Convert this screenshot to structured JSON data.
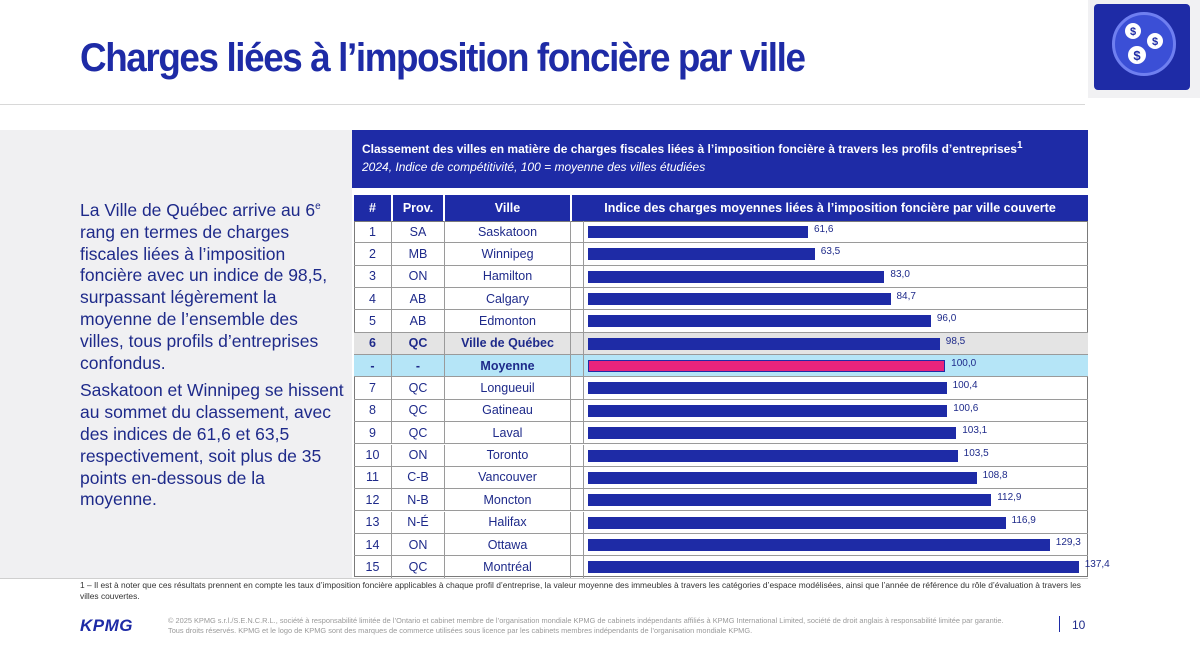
{
  "page": {
    "title": "Charges liées à l’imposition foncière par ville",
    "page_number": "10"
  },
  "narrative": {
    "p1_pre": "La Ville de Québec arrive au 6",
    "p1_sup": "e",
    "p1_post": " rang en termes de charges fiscales liées à l’imposition foncière avec un indice de 98,5, surpassant légèrement la moyenne de l’ensemble des villes, tous profils d’entreprises confondus.",
    "p2": "Saskatoon et Winnipeg se hissent au sommet du classement, avec des indices de 61,6 et 63,5 respectivement, soit plus de 35 points en-dessous de la moyenne."
  },
  "footnote": "1 – Il est à noter que ces résultats prennent en compte les taux d’imposition foncière applicables à chaque profil d’entreprise, la valeur moyenne des immeubles à travers les catégories d’espace modélisées, ainsi que l’année de référence du rôle d’évaluation à travers les villes couvertes.",
  "footer": {
    "logo": "KPMG",
    "legal_1": "© 2025 KPMG s.r.l./S.E.N.C.R.L., société à responsabilité limitée de l’Ontario et cabinet membre de l’organisation mondiale KPMG de cabinets indépendants affiliés à KPMG International Limited, société de droit anglais à responsabilité limitée par garantie.",
    "legal_2": "Tous droits réservés. KPMG et le logo de KPMG sont des marques de commerce utilisées sous licence par les cabinets membres indépendants de l’organisation mondiale KPMG."
  },
  "badge": {
    "icon": "dollar-network-icon"
  },
  "colors": {
    "primary": "#1e2ba6",
    "highlight_bar": "#e8247c",
    "highlight_row_blue": "#b5e5f7",
    "highlight_row_grey": "#e4e4e4"
  },
  "chart_data": {
    "type": "bar",
    "orientation": "horizontal",
    "title": "Classement des villes en matière de charges fiscales liées à l’imposition foncière à travers les profils d’entreprises",
    "title_sup": "1",
    "subtitle": "2024, Indice de compétitivité, 100 = moyenne des villes étudiées",
    "columns": [
      "#",
      "Prov.",
      "Ville",
      "Indice des charges moyennes liées à l’imposition foncière par ville couverte"
    ],
    "xlim": [
      0,
      140
    ],
    "rows": [
      {
        "rank": "1",
        "prov": "SA",
        "city": "Saskatoon",
        "value": 61.6,
        "label": "61,6",
        "highlight": ""
      },
      {
        "rank": "2",
        "prov": "MB",
        "city": "Winnipeg",
        "value": 63.5,
        "label": "63,5",
        "highlight": ""
      },
      {
        "rank": "3",
        "prov": "ON",
        "city": "Hamilton",
        "value": 83.0,
        "label": "83,0",
        "highlight": ""
      },
      {
        "rank": "4",
        "prov": "AB",
        "city": "Calgary",
        "value": 84.7,
        "label": "84,7",
        "highlight": ""
      },
      {
        "rank": "5",
        "prov": "AB",
        "city": "Edmonton",
        "value": 96.0,
        "label": "96,0",
        "highlight": ""
      },
      {
        "rank": "6",
        "prov": "QC",
        "city": "Ville de Québec",
        "value": 98.5,
        "label": "98,5",
        "highlight": "grey"
      },
      {
        "rank": "-",
        "prov": "-",
        "city": "Moyenne",
        "value": 100.0,
        "label": "100,0",
        "highlight": "blue"
      },
      {
        "rank": "7",
        "prov": "QC",
        "city": "Longueuil",
        "value": 100.4,
        "label": "100,4",
        "highlight": ""
      },
      {
        "rank": "8",
        "prov": "QC",
        "city": "Gatineau",
        "value": 100.6,
        "label": "100,6",
        "highlight": ""
      },
      {
        "rank": "9",
        "prov": "QC",
        "city": "Laval",
        "value": 103.1,
        "label": "103,1",
        "highlight": ""
      },
      {
        "rank": "10",
        "prov": "ON",
        "city": "Toronto",
        "value": 103.5,
        "label": "103,5",
        "highlight": ""
      },
      {
        "rank": "11",
        "prov": "C-B",
        "city": "Vancouver",
        "value": 108.8,
        "label": "108,8",
        "highlight": ""
      },
      {
        "rank": "12",
        "prov": "N-B",
        "city": "Moncton",
        "value": 112.9,
        "label": "112,9",
        "highlight": ""
      },
      {
        "rank": "13",
        "prov": "N-É",
        "city": "Halifax",
        "value": 116.9,
        "label": "116,9",
        "highlight": ""
      },
      {
        "rank": "14",
        "prov": "ON",
        "city": "Ottawa",
        "value": 129.3,
        "label": "129,3",
        "highlight": ""
      },
      {
        "rank": "15",
        "prov": "QC",
        "city": "Montréal",
        "value": 137.4,
        "label": "137,4",
        "highlight": ""
      }
    ]
  }
}
